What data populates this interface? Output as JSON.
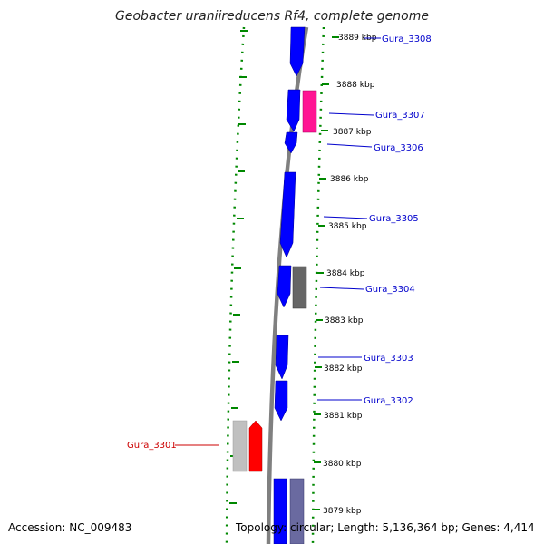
{
  "title": "Geobacter uraniireducens Rf4, complete genome",
  "footer": {
    "accession": "Accession: NC_009483",
    "topology": "Topology: circular; Length: 5,136,364 bp; Genes: 4,414"
  },
  "kbp_labels": [
    "3889 kbp",
    "3888 kbp",
    "3887 kbp",
    "3886 kbp",
    "3885 kbp",
    "3884 kbp",
    "3883 kbp",
    "3882 kbp",
    "3881 kbp",
    "3880 kbp",
    "3879 kbp"
  ],
  "genes": [
    {
      "name": "Gura_3308",
      "color": "#0000cc"
    },
    {
      "name": "Gura_3307",
      "color": "#0000cc"
    },
    {
      "name": "Gura_3306",
      "color": "#0000cc"
    },
    {
      "name": "Gura_3305",
      "color": "#0000cc"
    },
    {
      "name": "Gura_3304",
      "color": "#0000cc"
    },
    {
      "name": "Gura_3303",
      "color": "#0000cc"
    },
    {
      "name": "Gura_3302",
      "color": "#0000cc"
    },
    {
      "name": "Gura_3301",
      "color": "#cc0000"
    }
  ],
  "colors": {
    "forward_cds": "#0000ff",
    "feature_magenta": "#ff1493",
    "feature_gray": "#666666",
    "feature_light_gray": "#c0c0c0",
    "feature_red": "#ff0000",
    "tick_green": "#008800",
    "backbone": "#808080"
  }
}
